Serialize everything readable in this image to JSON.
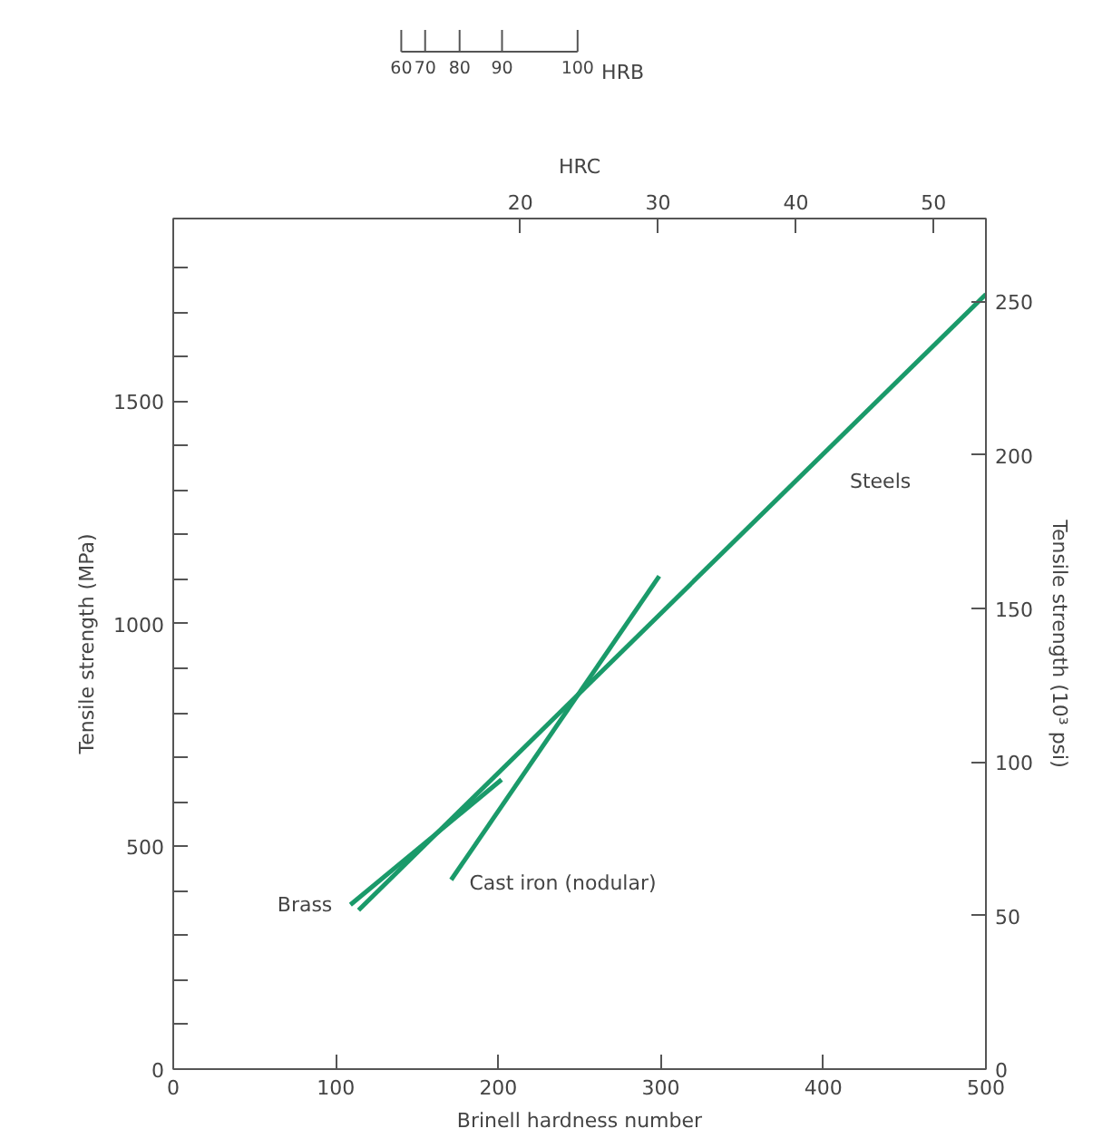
{
  "chart_data": {
    "type": "line",
    "xlabel": "Brinell hardness number",
    "ylabel": "Tensile strength (MPa)",
    "y2label": "Tensile strength (10³ psi)",
    "x2label": "HRC",
    "series": [
      {
        "name": "Steels",
        "color": "#1a9a6a",
        "x": [
          114,
          500
        ],
        "values": [
          357,
          1740
        ]
      },
      {
        "name": "Brass",
        "color": "#1a9a6a",
        "x": [
          109,
          202
        ],
        "values": [
          369,
          650
        ]
      },
      {
        "name": "Cast iron (nodular)",
        "color": "#1a9a6a",
        "x": [
          171,
          299
        ],
        "values": [
          425,
          1107
        ]
      }
    ],
    "annotations": [
      "60",
      "70",
      "80",
      "90",
      "100",
      "HRB"
    ],
    "xlim": [
      0,
      500
    ],
    "xticks": [
      0,
      100,
      200,
      300,
      400,
      500
    ],
    "ylim": [
      0,
      1910
    ],
    "yticks": [
      0,
      {
        "value": 100,
        "label": null
      },
      {
        "value": 200,
        "label": null
      },
      {
        "value": 300,
        "label": null
      },
      {
        "value": 400,
        "label": null
      },
      500,
      {
        "value": 600,
        "label": null
      },
      {
        "value": 700,
        "label": null
      },
      {
        "value": 800,
        "label": null
      },
      {
        "value": 900,
        "label": null
      },
      1000,
      {
        "value": 1100,
        "label": null
      },
      {
        "value": 1200,
        "label": null
      },
      {
        "value": 1300,
        "label": null
      },
      {
        "value": 1400,
        "label": null
      },
      1500,
      {
        "value": 1600,
        "label": null
      },
      {
        "value": 1700,
        "label": null
      },
      {
        "value": 1800,
        "label": null
      }
    ],
    "y2lim": [
      0,
      277
    ],
    "y2ticks": [
      0,
      50,
      100,
      150,
      200,
      250
    ],
    "x2lim": [
      -5.2,
      53.8
    ],
    "x2ticks": [
      20,
      30,
      40,
      50
    ],
    "grid": false
  }
}
